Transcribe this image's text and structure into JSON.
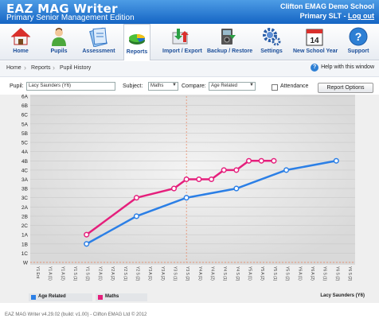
{
  "app": {
    "title": "EAZ MAG Writer",
    "edition": "Primary Senior Management Edition",
    "school": "Clifton EMAG Demo School",
    "user_role": "Primary SLT",
    "logout": "Log out"
  },
  "nav": [
    {
      "label": "Home",
      "icon": "home-icon"
    },
    {
      "label": "Pupils",
      "icon": "pupil-icon"
    },
    {
      "label": "Assessment",
      "icon": "assessment-icon"
    },
    {
      "label": "Reports",
      "icon": "reports-icon",
      "active": true
    },
    {
      "label": "Import / Export",
      "icon": "import-export-icon"
    },
    {
      "label": "Backup / Restore",
      "icon": "backup-icon"
    },
    {
      "label": "Settings",
      "icon": "gear-icon"
    },
    {
      "label": "New School Year",
      "icon": "calendar-icon"
    },
    {
      "label": "Support",
      "icon": "support-icon"
    }
  ],
  "calendar_day": "14",
  "breadcrumb": [
    "Home",
    "Reports",
    "Pupil History"
  ],
  "help": "Help with this window",
  "filters": {
    "pupil_label": "Pupil:",
    "pupil_value": "Lacy Saunders (Y6)",
    "subject_label": "Subject:",
    "subject_value": "Maths",
    "compare_label": "Compare:",
    "compare_value": "Age Related",
    "attendance_label": "Attendance",
    "attendance_checked": false,
    "report_options": "Report Options"
  },
  "chart_data": {
    "type": "line",
    "y_levels": [
      "W",
      "1C",
      "1B",
      "1A",
      "2C",
      "2B",
      "2A",
      "3C",
      "3B",
      "3A",
      "4C",
      "4B",
      "4A",
      "5C",
      "5B",
      "5A",
      "6C",
      "6B",
      "6A"
    ],
    "x": [
      "Y1 Ent",
      "Y1 A (1)",
      "Y1 A (2)",
      "Y1 S (1)",
      "Y1 S (2)",
      "Y2 A (1)",
      "Y2 A (2)",
      "Y2 S (1)",
      "Y2 S (2)",
      "Y3 A (1)",
      "Y3 A (2)",
      "Y3 S (1)",
      "Y3 S (2)",
      "Y4 A (1)",
      "Y4 A (2)",
      "Y4 S (1)",
      "Y4 S (2)",
      "Y5 A (1)",
      "Y5 A (2)",
      "Y5 S (1)",
      "Y5 S (2)",
      "Y6 A (1)",
      "Y6 A (2)",
      "Y6 S (1)",
      "Y6 S (2)",
      "Y6 S (2)"
    ],
    "series": [
      {
        "name": "Age Related",
        "color": "#2b7fe6",
        "points": [
          {
            "x": "Y1 S (2)",
            "y": "1B"
          },
          {
            "x": "Y2 S (2)",
            "y": "2B"
          },
          {
            "x": "Y3 S (2)",
            "y": "3C"
          },
          {
            "x": "Y4 S (2)",
            "y": "3B"
          },
          {
            "x": "Y5 S (2)",
            "y": "4C"
          },
          {
            "x": "Y6 S (2)",
            "y": "4B"
          }
        ]
      },
      {
        "name": "Maths",
        "color": "#e51f7c",
        "points": [
          {
            "x": "Y1 S (2)",
            "y": "1A"
          },
          {
            "x": "Y2 S (2)",
            "y": "3C"
          },
          {
            "x": "Y3 S (1)",
            "y": "3B"
          },
          {
            "x": "Y3 S (2)",
            "y": "3A"
          },
          {
            "x": "Y4 A (1)",
            "y": "3A"
          },
          {
            "x": "Y4 A (2)",
            "y": "3A"
          },
          {
            "x": "Y4 S (1)",
            "y": "4C"
          },
          {
            "x": "Y4 S (2)",
            "y": "4C"
          },
          {
            "x": "Y5 A (1)",
            "y": "4B"
          },
          {
            "x": "Y5 A (2)",
            "y": "4B"
          },
          {
            "x": "Y5 S (1)",
            "y": "4B"
          }
        ]
      }
    ],
    "reference_x": "Y3 S (2)",
    "reference_y": "W",
    "legend": [
      "Age Related",
      "Maths"
    ],
    "grid": true
  },
  "pupil_caption": "Lacy Saunders (Y6)",
  "footer": "EAZ MAG Writer v4.29.02 (build: v1.00) - Clifton EMAG Ltd © 2012"
}
